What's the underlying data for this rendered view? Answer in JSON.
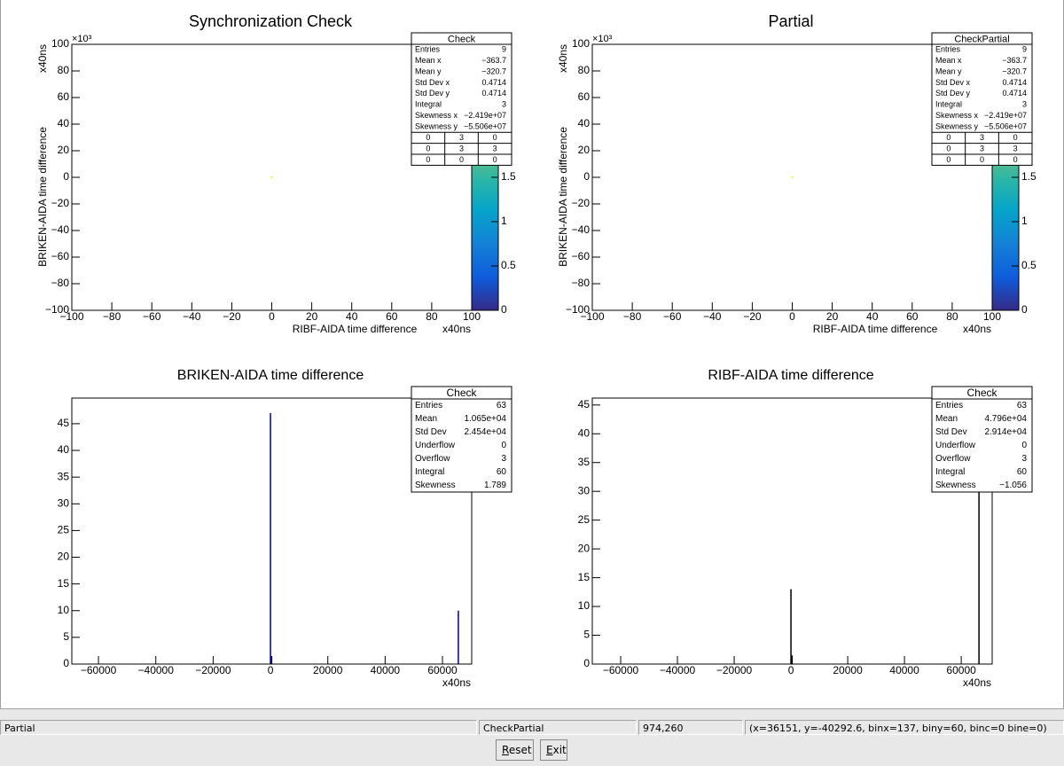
{
  "chart_data": [
    {
      "type": "heatmap",
      "title": "Synchronization Check",
      "xlabel": "RIBF-AIDA  time difference",
      "xunit": "x40ns",
      "ylabel": "BRIKEN-AIDA  time difference",
      "yunit": "x40ns",
      "ymultiplier": "×10³",
      "x": [
        0
      ],
      "y": [
        0
      ],
      "z": [
        3
      ],
      "xlim": [
        -100,
        100
      ],
      "xticks": [
        -100,
        -80,
        -60,
        -40,
        -20,
        0,
        20,
        40,
        60,
        80,
        100
      ],
      "ylim": [
        -100,
        100
      ],
      "yticks": [
        -100,
        -80,
        -60,
        -40,
        -20,
        0,
        20,
        40,
        60,
        80,
        100
      ],
      "zlim": [
        0,
        3
      ],
      "zticks": [
        0,
        0.5,
        1,
        1.5
      ],
      "palette": [
        "#352a87",
        "#0f5cdd",
        "#1481d6",
        "#06a4ca",
        "#2eb7a4",
        "#87bf77",
        "#d1bb59",
        "#fec832",
        "#f9fb0e"
      ],
      "stats": {
        "title": "Check",
        "rows": [
          [
            "Entries",
            "9"
          ],
          [
            "Mean x",
            "−363.7"
          ],
          [
            "Mean y",
            "−320.7"
          ],
          [
            "Std Dev x",
            "0.4714"
          ],
          [
            "Std Dev y",
            "0.4714"
          ],
          [
            "Integral",
            "3"
          ],
          [
            "Skewness x",
            "−2.419e+07"
          ],
          [
            "Skewness y",
            "−5.506e+07"
          ]
        ],
        "grid": [
          [
            "0",
            "3",
            "0"
          ],
          [
            "0",
            "3",
            "3"
          ],
          [
            "0",
            "0",
            "0"
          ]
        ]
      }
    },
    {
      "type": "heatmap",
      "title": "Partial",
      "xlabel": "RIBF-AIDA  time difference",
      "xunit": "x40ns",
      "ylabel": "BRIKEN-AIDA  time difference",
      "yunit": "x40ns",
      "ymultiplier": "×10³",
      "x": [
        0
      ],
      "y": [
        0
      ],
      "z": [
        3
      ],
      "xlim": [
        -100,
        100
      ],
      "xticks": [
        -100,
        -80,
        -60,
        -40,
        -20,
        0,
        20,
        40,
        60,
        80,
        100
      ],
      "ylim": [
        -100,
        100
      ],
      "yticks": [
        -100,
        -80,
        -60,
        -40,
        -20,
        0,
        20,
        40,
        60,
        80,
        100
      ],
      "zlim": [
        0,
        3
      ],
      "zticks": [
        0,
        0.5,
        1,
        1.5
      ],
      "palette": [
        "#352a87",
        "#0f5cdd",
        "#1481d6",
        "#06a4ca",
        "#2eb7a4",
        "#87bf77",
        "#d1bb59",
        "#fec832",
        "#f9fb0e"
      ],
      "stats": {
        "title": "CheckPartial",
        "rows": [
          [
            "Entries",
            "9"
          ],
          [
            "Mean x",
            "−363.7"
          ],
          [
            "Mean y",
            "−320.7"
          ],
          [
            "Std Dev x",
            "0.4714"
          ],
          [
            "Std Dev y",
            "0.4714"
          ],
          [
            "Integral",
            "3"
          ],
          [
            "Skewness x",
            "−2.419e+07"
          ],
          [
            "Skewness y",
            "−5.506e+07"
          ]
        ],
        "grid": [
          [
            "0",
            "3",
            "0"
          ],
          [
            "0",
            "3",
            "3"
          ],
          [
            "0",
            "0",
            "0"
          ]
        ]
      }
    },
    {
      "type": "bar",
      "title": "BRIKEN-AIDA time difference",
      "xunit": "x40ns",
      "color": "#000080",
      "x": [
        0,
        400,
        65536
      ],
      "values": [
        47,
        1.5,
        10
      ],
      "xlim": [
        -69300,
        70200
      ],
      "xticks": [
        -60000,
        -40000,
        -20000,
        0,
        20000,
        40000,
        60000
      ],
      "ylim": [
        0,
        49.8
      ],
      "yticks": [
        0,
        5,
        10,
        15,
        20,
        25,
        30,
        35,
        40,
        45
      ],
      "stats": {
        "title": "Check",
        "rows": [
          [
            "Entries",
            "63"
          ],
          [
            "Mean",
            "1.065e+04"
          ],
          [
            "Std Dev",
            "2.454e+04"
          ],
          [
            "Underflow",
            "0"
          ],
          [
            "Overflow",
            "3"
          ],
          [
            "Integral",
            "60"
          ],
          [
            "Skewness",
            "1.789"
          ]
        ]
      }
    },
    {
      "type": "bar",
      "title": "RIBF-AIDA time difference",
      "xunit": "x40ns",
      "color": "#000000",
      "x": [
        0,
        400,
        66250
      ],
      "values": [
        13,
        1.5,
        48
      ],
      "xlim": [
        -70000,
        70900
      ],
      "xticks": [
        -60000,
        -40000,
        -20000,
        0,
        20000,
        40000,
        60000
      ],
      "ylim": [
        0,
        46.2
      ],
      "yticks": [
        0,
        5,
        10,
        15,
        20,
        25,
        30,
        35,
        40,
        45
      ],
      "stats": {
        "title": "Check",
        "rows": [
          [
            "Entries",
            "63"
          ],
          [
            "Mean",
            "4.796e+04"
          ],
          [
            "Std Dev",
            "2.914e+04"
          ],
          [
            "Underflow",
            "0"
          ],
          [
            "Overflow",
            "3"
          ],
          [
            "Integral",
            "60"
          ],
          [
            "Skewness",
            "−1.056"
          ]
        ]
      }
    }
  ],
  "status_bar": [
    "Partial",
    "CheckPartial",
    "974,260",
    "(x=36151, y=-40292.6, binx=137, biny=60, binc=0 bine=0)"
  ],
  "buttons": [
    "Reset",
    "Exit"
  ]
}
